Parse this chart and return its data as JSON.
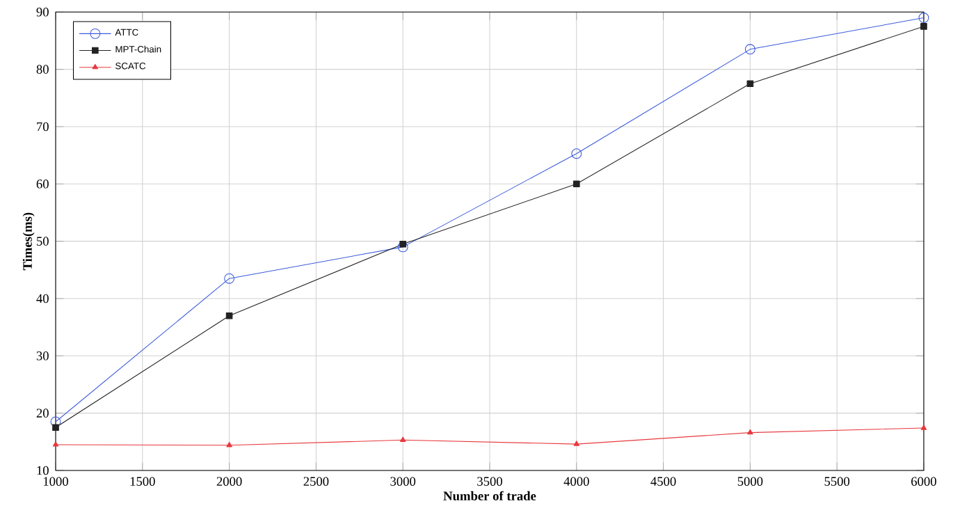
{
  "chart_data": {
    "type": "line",
    "xlabel": "Number of trade",
    "ylabel": "Times(ms)",
    "x": [
      1000,
      2000,
      3000,
      4000,
      5000,
      6000
    ],
    "series": [
      {
        "name": "ATTC",
        "color": "#3b5bdb",
        "marker": "circle",
        "values": [
          18.5,
          43.5,
          49,
          65.3,
          83.5,
          89
        ]
      },
      {
        "name": "MPT-Chain",
        "color": "#222222",
        "marker": "square",
        "values": [
          17.5,
          37,
          49.5,
          60,
          77.5,
          87.5
        ]
      },
      {
        "name": "SCATC",
        "color": "#e8383d",
        "marker": "triangle",
        "values": [
          14.5,
          14.4,
          15.3,
          14.6,
          16.6,
          17.4
        ]
      }
    ],
    "xlim": [
      1000,
      6000
    ],
    "ylim": [
      10,
      90
    ],
    "xticks": [
      1000,
      1500,
      2000,
      2500,
      3000,
      3500,
      4000,
      4500,
      5000,
      5500,
      6000
    ],
    "yticks": [
      10,
      20,
      30,
      40,
      50,
      60,
      70,
      80,
      90
    ],
    "grid": true,
    "legend": "top left",
    "line_style": "solid"
  }
}
